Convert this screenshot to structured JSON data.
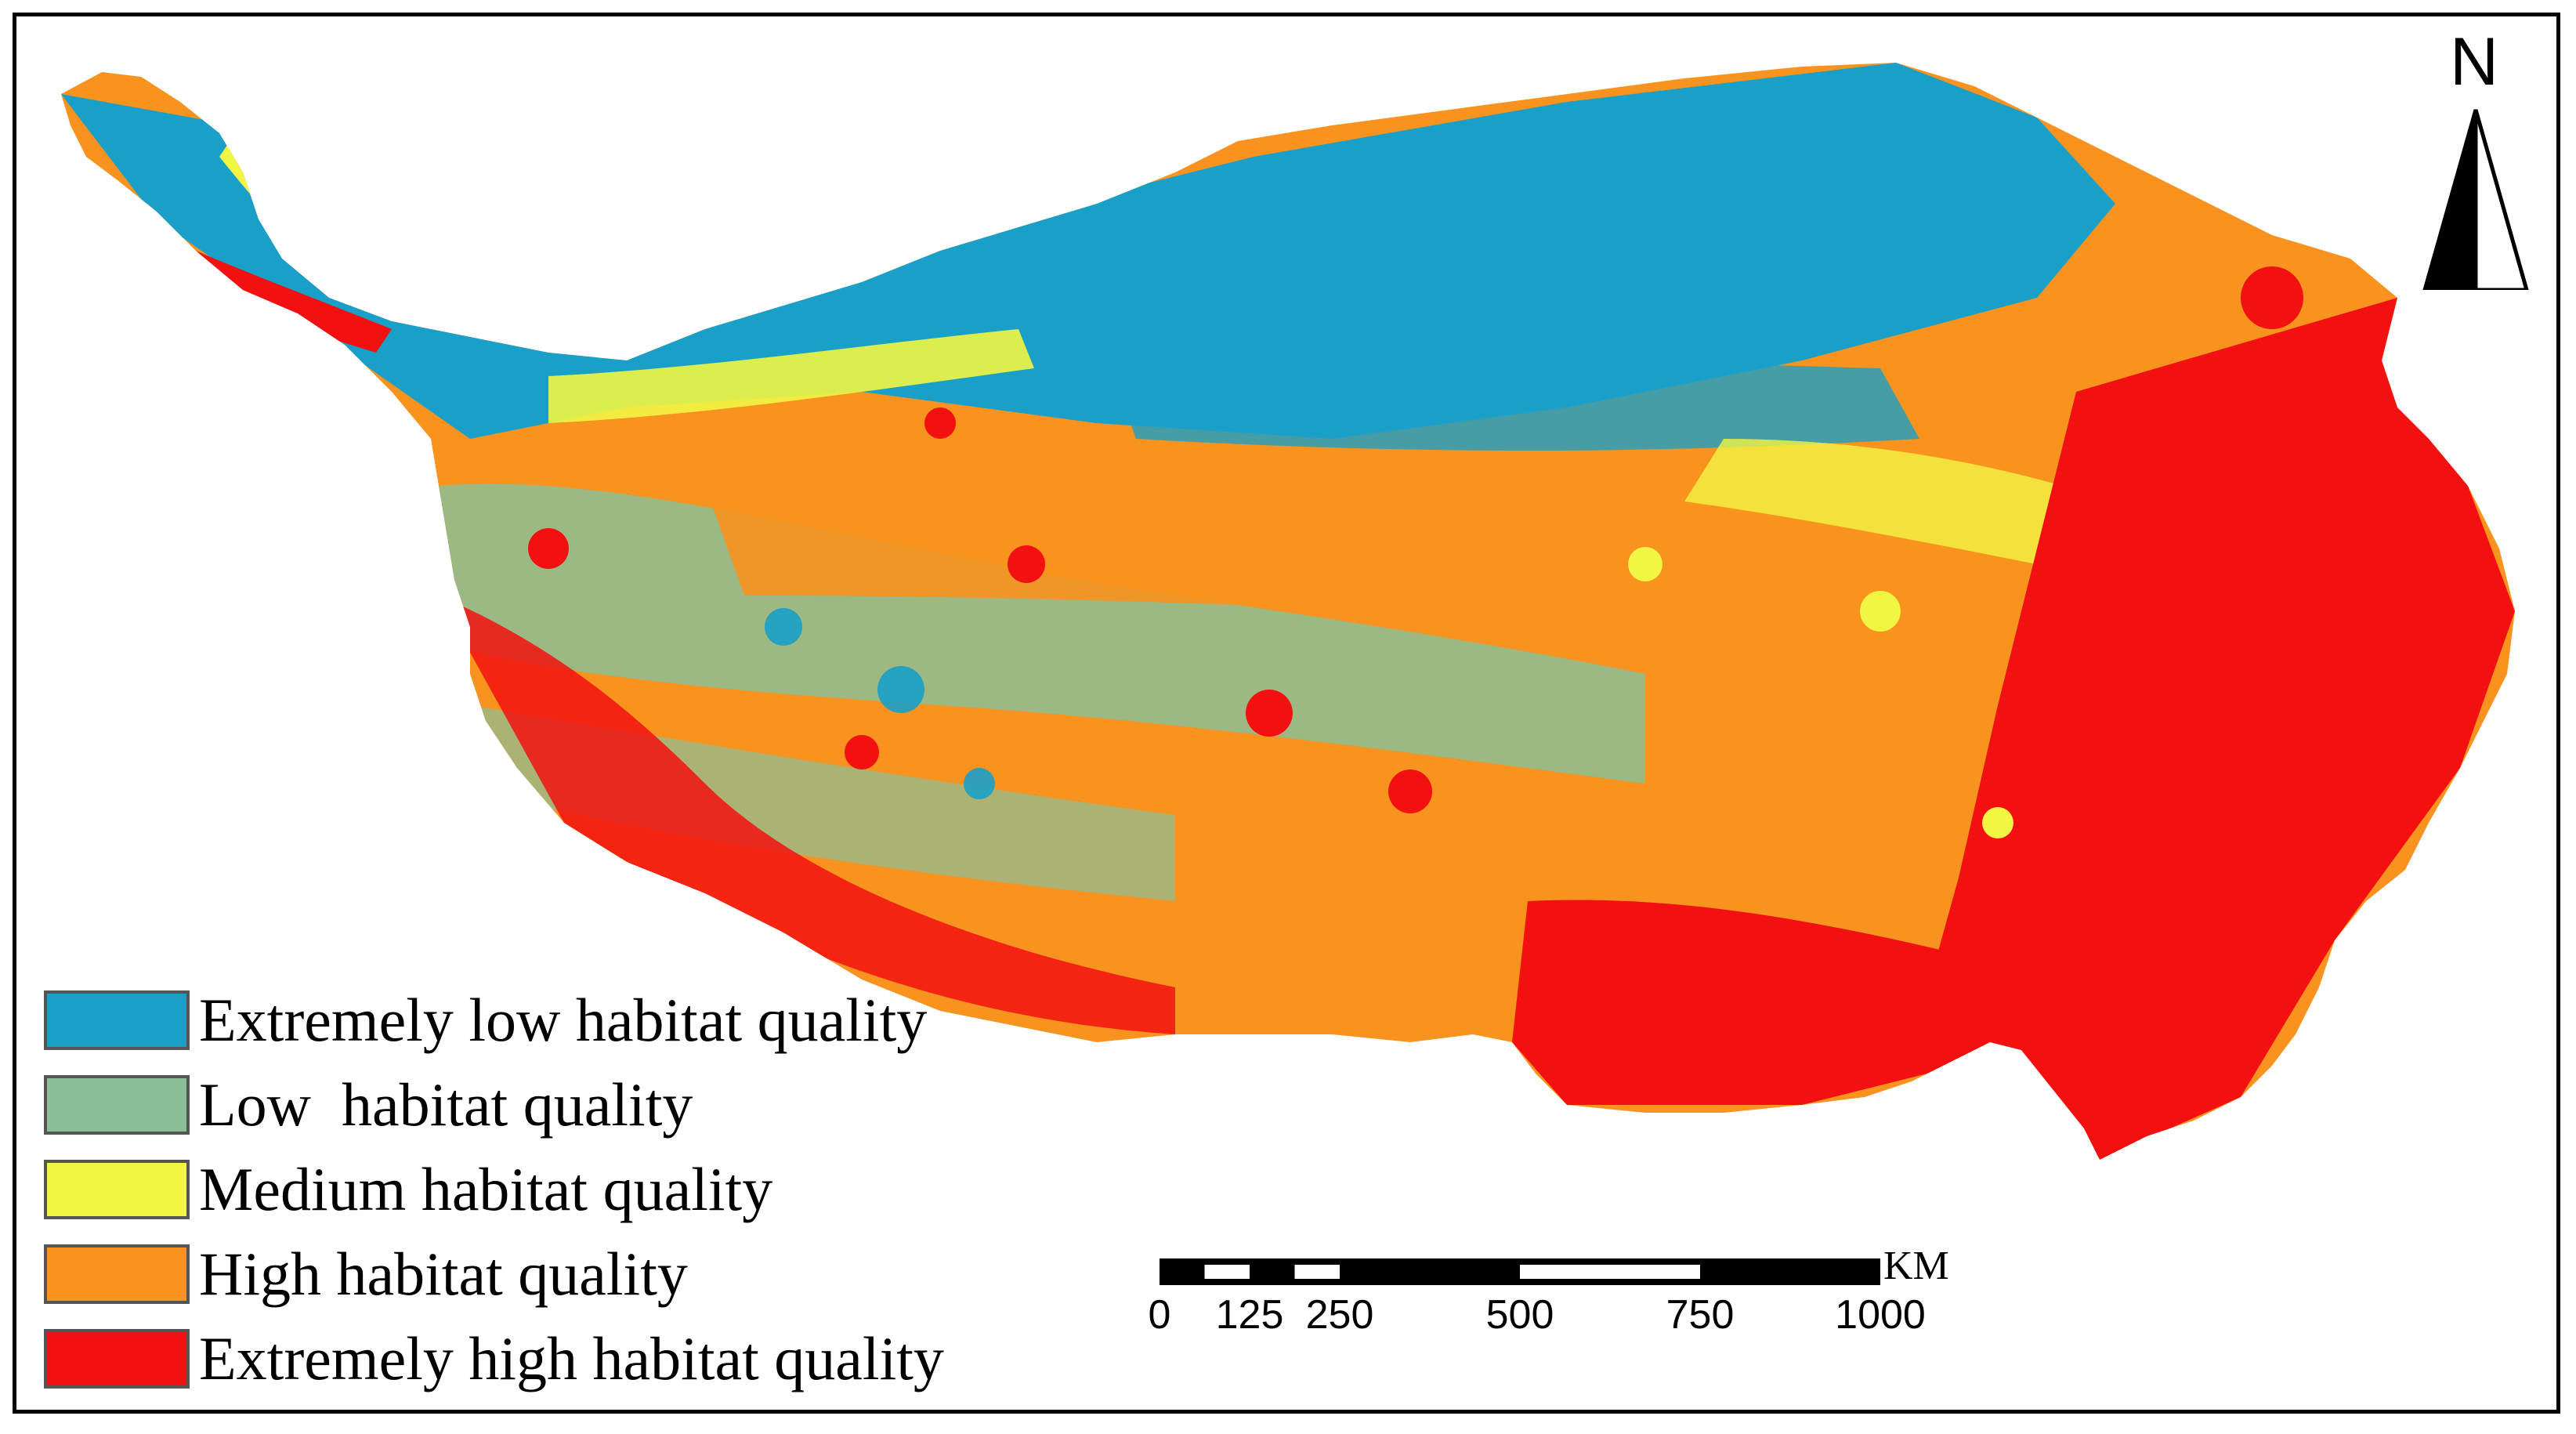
{
  "legend": {
    "items": [
      {
        "label": "Extremely low habitat quality",
        "color": "#1aa0c8"
      },
      {
        "label": "Low  habitat quality",
        "color": "#8cbf97"
      },
      {
        "label": "Medium habitat quality",
        "color": "#f2f542"
      },
      {
        "label": "High habitat quality",
        "color": "#f7931e"
      },
      {
        "label": "Extremely high habitat quality",
        "color": "#f21010"
      }
    ]
  },
  "north_arrow": {
    "letter": "N"
  },
  "scale_bar": {
    "unit": "KM",
    "ticks": [
      "0",
      "125",
      "250",
      "500",
      "750",
      "1000"
    ]
  }
}
